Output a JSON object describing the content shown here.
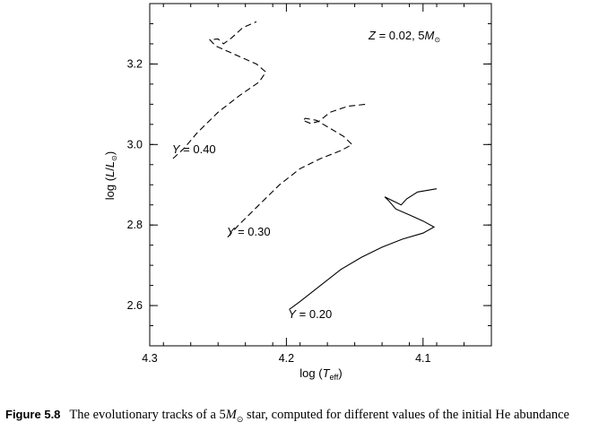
{
  "chart_data": {
    "type": "line",
    "title": "",
    "xlabel": {
      "prefix": "log (",
      "T": "T",
      "sub": "eff",
      "suffix": ")"
    },
    "ylabel": {
      "prefix": "log (",
      "L1": "L",
      "slash": "/",
      "L2": "L",
      "sun": "⊙",
      "suffix": ")"
    },
    "xlim": [
      4.3,
      4.05
    ],
    "ylim": [
      2.5,
      3.35
    ],
    "x_inverted": true,
    "xticks": [
      4.3,
      4.2,
      4.1
    ],
    "xtick_labels": [
      "4.3",
      "4.2",
      "4.1"
    ],
    "yticks": [
      2.6,
      2.8,
      3.0,
      3.2
    ],
    "ytick_labels": [
      "2.6",
      "2.8",
      "3.0",
      "3.2"
    ],
    "grid": false,
    "legend": "none",
    "annotation": {
      "Z": "Z",
      "eq": " = 0.02, 5",
      "M": "M",
      "sun": "⊙"
    },
    "series": [
      {
        "name": "Y = 0.20",
        "dash": "solid",
        "label_at": [
          4.2,
          2.58
        ],
        "points": [
          [
            4.198,
            2.59
          ],
          [
            4.19,
            2.61
          ],
          [
            4.175,
            2.65
          ],
          [
            4.16,
            2.69
          ],
          [
            4.145,
            2.72
          ],
          [
            4.13,
            2.745
          ],
          [
            4.115,
            2.765
          ],
          [
            4.1,
            2.78
          ],
          [
            4.092,
            2.795
          ],
          [
            4.1,
            2.81
          ],
          [
            4.11,
            2.825
          ],
          [
            4.12,
            2.84
          ],
          [
            4.125,
            2.86
          ],
          [
            4.128,
            2.87
          ],
          [
            4.122,
            2.86
          ],
          [
            4.116,
            2.85
          ],
          [
            4.112,
            2.865
          ],
          [
            4.104,
            2.882
          ],
          [
            4.09,
            2.89
          ]
        ]
      },
      {
        "name": "Y = 0.30",
        "dash": "dashed",
        "label_at": [
          4.245,
          2.785
        ],
        "points": [
          [
            4.243,
            2.77
          ],
          [
            4.235,
            2.8
          ],
          [
            4.22,
            2.85
          ],
          [
            4.205,
            2.9
          ],
          [
            4.19,
            2.94
          ],
          [
            4.175,
            2.965
          ],
          [
            4.16,
            2.985
          ],
          [
            4.152,
            3.0
          ],
          [
            4.158,
            3.02
          ],
          [
            4.168,
            3.04
          ],
          [
            4.178,
            3.06
          ],
          [
            4.186,
            3.065
          ],
          [
            4.188,
            3.06
          ],
          [
            4.182,
            3.052
          ],
          [
            4.176,
            3.058
          ],
          [
            4.168,
            3.08
          ],
          [
            4.155,
            3.095
          ],
          [
            4.142,
            3.1
          ]
        ]
      },
      {
        "name": "Y = 0.40",
        "dash": "dashed",
        "label_at": [
          4.285,
          2.99
        ],
        "points": [
          [
            4.283,
            2.965
          ],
          [
            4.275,
            2.99
          ],
          [
            4.265,
            3.03
          ],
          [
            4.25,
            3.08
          ],
          [
            4.235,
            3.12
          ],
          [
            4.22,
            3.155
          ],
          [
            4.215,
            3.18
          ],
          [
            4.222,
            3.2
          ],
          [
            4.232,
            3.215
          ],
          [
            4.242,
            3.23
          ],
          [
            4.252,
            3.245
          ],
          [
            4.256,
            3.26
          ],
          [
            4.25,
            3.262
          ],
          [
            4.246,
            3.25
          ],
          [
            4.24,
            3.265
          ],
          [
            4.232,
            3.29
          ],
          [
            4.222,
            3.305
          ]
        ]
      }
    ]
  },
  "caption": {
    "figure_label": "Figure 5.8",
    "text_before": "The evolutionary tracks of a 5",
    "M": "M",
    "sun": "⊙",
    "text_after": " star, computed for different values of the initial He abundance"
  }
}
